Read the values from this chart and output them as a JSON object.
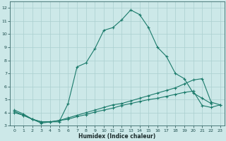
{
  "xlabel": "Humidex (Indice chaleur)",
  "bg_color": "#cce8e8",
  "grid_color": "#aacfcf",
  "line_color": "#1a7a6a",
  "xlim": [
    -0.5,
    23.5
  ],
  "ylim": [
    3,
    12.5
  ],
  "xticks": [
    0,
    1,
    2,
    3,
    4,
    5,
    6,
    7,
    8,
    9,
    10,
    11,
    12,
    13,
    14,
    15,
    16,
    17,
    18,
    19,
    20,
    21,
    22,
    23
  ],
  "yticks": [
    3,
    4,
    5,
    6,
    7,
    8,
    9,
    10,
    11,
    12
  ],
  "series1_x": [
    0,
    1,
    2,
    3,
    4,
    5,
    6,
    7,
    8,
    9,
    10,
    11,
    12,
    13,
    14,
    15,
    16,
    17,
    18,
    19,
    20,
    21,
    22
  ],
  "series1_y": [
    4.2,
    3.9,
    3.5,
    3.2,
    3.3,
    3.3,
    4.7,
    7.5,
    7.8,
    8.9,
    10.3,
    10.5,
    11.1,
    11.85,
    11.5,
    10.5,
    9.0,
    8.3,
    7.0,
    6.6,
    5.5,
    5.1,
    4.7
  ],
  "series2_x": [
    0,
    1,
    2,
    3,
    4,
    5,
    6,
    7,
    8,
    9,
    10,
    11,
    12,
    13,
    14,
    15,
    16,
    17,
    18,
    19,
    20,
    21,
    22,
    23
  ],
  "series2_y": [
    4.1,
    3.8,
    3.5,
    3.3,
    3.3,
    3.4,
    3.6,
    3.8,
    4.0,
    4.2,
    4.4,
    4.6,
    4.7,
    4.9,
    5.1,
    5.3,
    5.5,
    5.7,
    5.9,
    6.2,
    6.5,
    6.6,
    4.8,
    4.6
  ],
  "series3_x": [
    0,
    1,
    2,
    3,
    4,
    5,
    6,
    7,
    8,
    9,
    10,
    11,
    12,
    13,
    14,
    15,
    16,
    17,
    18,
    19,
    20,
    21,
    22,
    23
  ],
  "series3_y": [
    4.0,
    3.8,
    3.5,
    3.3,
    3.3,
    3.4,
    3.5,
    3.7,
    3.85,
    4.05,
    4.2,
    4.35,
    4.55,
    4.7,
    4.85,
    5.0,
    5.1,
    5.25,
    5.4,
    5.55,
    5.65,
    4.55,
    4.4,
    4.6
  ]
}
